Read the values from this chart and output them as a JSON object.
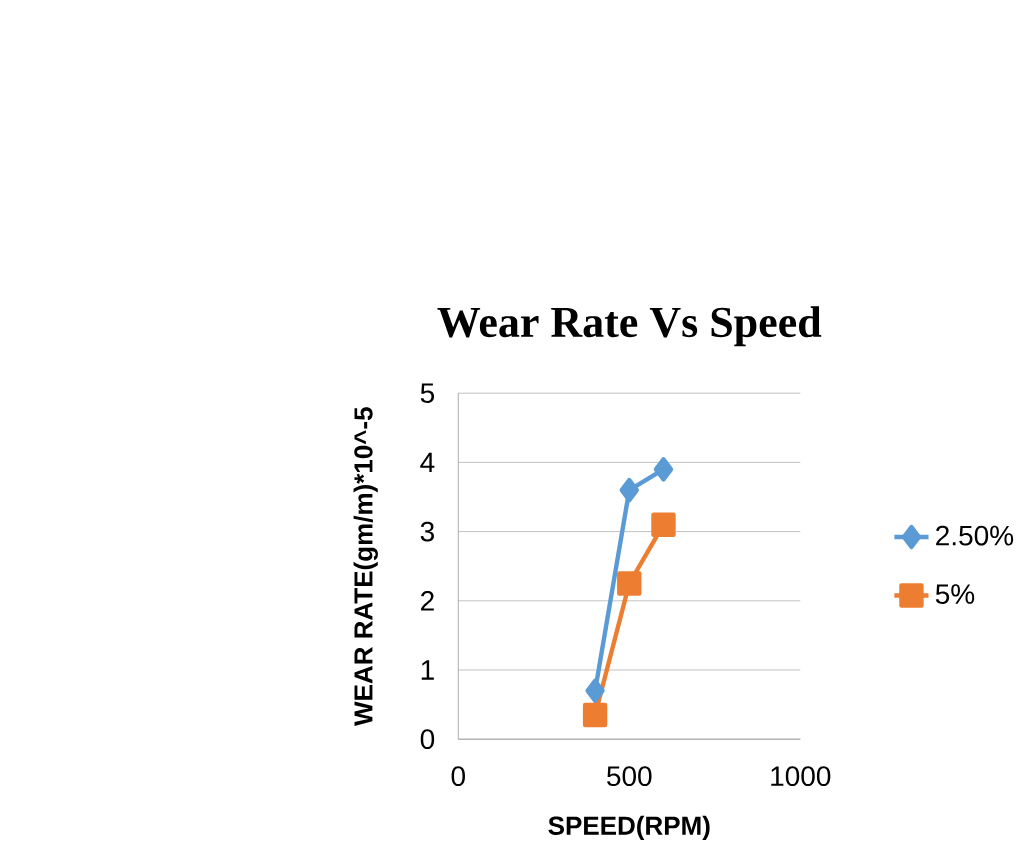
{
  "chart_data": {
    "type": "line",
    "title": "Wear Rate Vs Speed",
    "xlabel": "SPEED(RPM)",
    "ylabel": "WEAR RATE(gm/m)*10^-5",
    "x": [
      400,
      500,
      600
    ],
    "series": [
      {
        "name": "2.50%",
        "color": "#5b9bd5",
        "values": [
          0.7,
          3.6,
          3.9
        ],
        "marker": "diamond"
      },
      {
        "name": "5%",
        "color": "#ed7d31",
        "values": [
          0.35,
          2.25,
          3.1
        ],
        "marker": "square"
      }
    ],
    "xlim": [
      0,
      1000
    ],
    "xticks": [
      0,
      500,
      1000
    ],
    "ylim": [
      0,
      5
    ],
    "yticks": [
      0,
      1,
      2,
      3,
      4,
      5
    ],
    "grid": "y",
    "legend": "right",
    "line_style": "solid"
  }
}
